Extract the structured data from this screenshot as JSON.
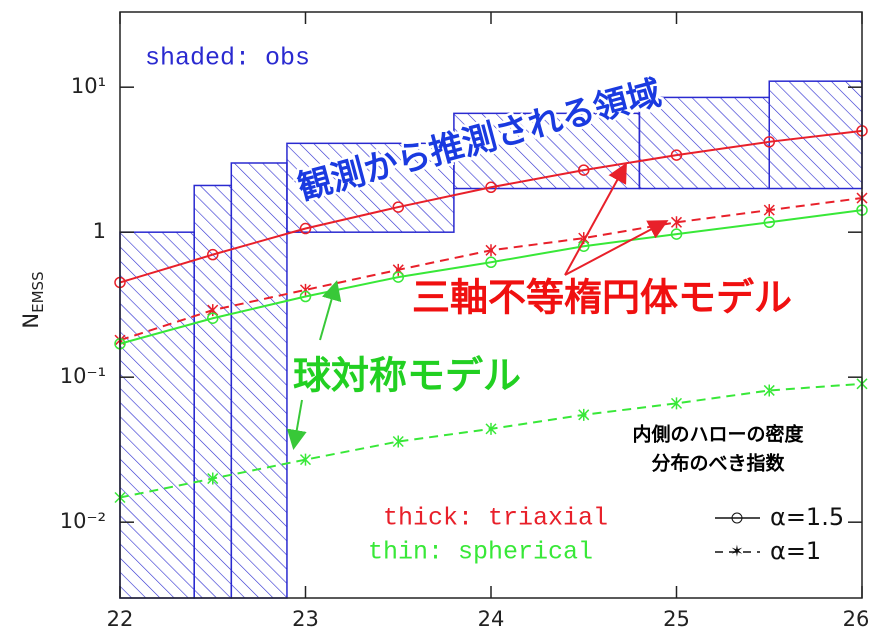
{
  "chart_data": {
    "type": "line",
    "ylabel": "N",
    "ylabel_sub": "EMSS",
    "log_y": true,
    "xlim": [
      22,
      26
    ],
    "xticks": [
      22,
      23,
      24,
      25,
      26
    ],
    "ylim": [
      0.003,
      33
    ],
    "yticks": [
      {
        "value": 10,
        "label": "10¹"
      },
      1,
      {
        "value": 0.1,
        "label": "10⁻¹"
      },
      {
        "value": 0.01,
        "label": "10⁻²"
      }
    ],
    "x": [
      22,
      22.5,
      23,
      23.5,
      24,
      24.5,
      25,
      25.5,
      26
    ],
    "series": [
      {
        "color": "#e8202a",
        "dash": false,
        "marker": "circle",
        "values": [
          0.45,
          0.7,
          1.06,
          1.49,
          2.04,
          2.68,
          3.4,
          4.2,
          5.0
        ]
      },
      {
        "color": "#e8202a",
        "dash": true,
        "marker": "star",
        "values": [
          0.18,
          0.29,
          0.4,
          0.55,
          0.75,
          0.91,
          1.17,
          1.42,
          1.72
        ]
      },
      {
        "color": "#38e838",
        "dash": false,
        "marker": "circle",
        "values": [
          0.17,
          0.255,
          0.36,
          0.49,
          0.62,
          0.8,
          0.97,
          1.17,
          1.42
        ]
      },
      {
        "color": "#38e838",
        "dash": true,
        "marker": "star",
        "values": [
          0.0148,
          0.02,
          0.027,
          0.036,
          0.044,
          0.055,
          0.066,
          0.081,
          0.09
        ]
      }
    ],
    "obs": {
      "color": "#2a2ad0",
      "edges": [
        22,
        22.4,
        22.6,
        22.9,
        23.8,
        24.8,
        25.5,
        26
      ],
      "upper": [
        1,
        2.1,
        3,
        4.1,
        6.6,
        8.5,
        11
      ],
      "lower": [
        0.003,
        0.003,
        0.003,
        1,
        2,
        2,
        2
      ]
    },
    "obs_label": "shaded: obs",
    "legend_thick": "thick: triaxial",
    "legend_thin": "thin: spherical",
    "legend_a15": "α=1.5",
    "legend_a1": "α=1",
    "annotations": {
      "obs_region": "観測から推測される領域",
      "triaxial_model": "三軸不等楕円体モデル",
      "spherical_model": "球対称モデル",
      "slope_line1": "内側のハローの密度",
      "slope_line2": "分布のべき指数"
    }
  }
}
